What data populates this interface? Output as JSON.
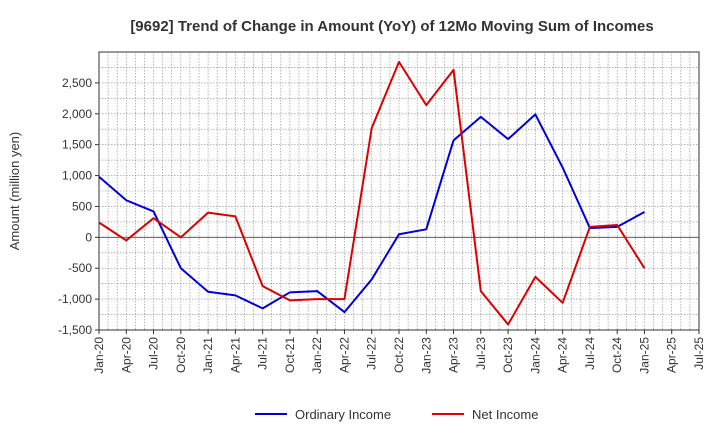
{
  "chart_data": {
    "type": "line",
    "title": "[9692]  Trend of Change in Amount (YoY) of 12Mo Moving Sum of Incomes",
    "xlabel": "",
    "ylabel": "Amount (million yen)",
    "ylim": [
      -1500,
      3000
    ],
    "yticks": [
      -1500,
      -1000,
      -500,
      0,
      500,
      1000,
      1500,
      2000,
      2500
    ],
    "ytick_labels": [
      "-1,500",
      "-1,000",
      "-500",
      "0",
      "500",
      "1,000",
      "1,500",
      "2,000",
      "2,500"
    ],
    "x_labels": [
      "Jan-20",
      "Apr-20",
      "Jul-20",
      "Oct-20",
      "Jan-21",
      "Apr-21",
      "Jul-21",
      "Oct-21",
      "Jan-22",
      "Apr-22",
      "Jul-22",
      "Oct-22",
      "Jan-23",
      "Apr-23",
      "Jul-23",
      "Oct-23",
      "Jan-24",
      "Apr-24",
      "Jul-24",
      "Oct-24",
      "Jan-25",
      "Apr-25",
      "Jul-25"
    ],
    "grid": true,
    "legend_position": "bottom",
    "series": [
      {
        "name": "Ordinary Income",
        "color": "#0000dd",
        "values": [
          980,
          600,
          420,
          -500,
          -880,
          -940,
          -1150,
          -890,
          -870,
          -1210,
          -680,
          50,
          130,
          1570,
          1950,
          1590,
          1990,
          1130,
          150,
          170,
          410
        ]
      },
      {
        "name": "Net Income",
        "color": "#dd0000",
        "values": [
          240,
          -50,
          310,
          0,
          400,
          340,
          -790,
          -1020,
          -1000,
          -1000,
          1770,
          2840,
          2140,
          2710,
          -870,
          -1410,
          -640,
          -1060,
          170,
          200,
          -500
        ]
      }
    ]
  }
}
